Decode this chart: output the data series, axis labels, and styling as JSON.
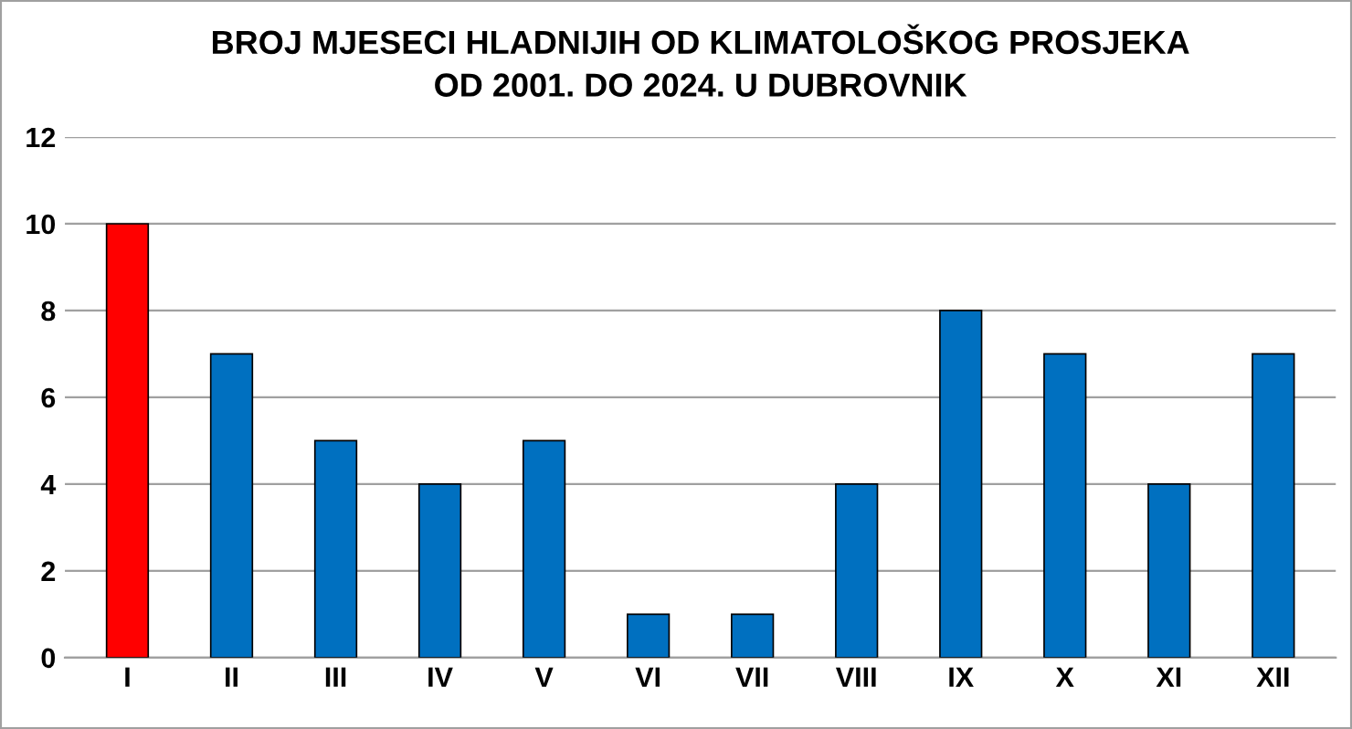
{
  "chart_data": {
    "type": "bar",
    "title": "BROJ MJESECI HLADNIJIH OD KLIMATOLOŠKOG PROSJEKA\nOD 2001. DO 2024. U DUBROVNIK",
    "categories": [
      "I",
      "II",
      "III",
      "IV",
      "V",
      "VI",
      "VII",
      "VIII",
      "IX",
      "X",
      "XI",
      "XII"
    ],
    "values": [
      10,
      7,
      5,
      4,
      5,
      1,
      1,
      4,
      8,
      7,
      4,
      7
    ],
    "colors": [
      "#ff0000",
      "#0070c0",
      "#0070c0",
      "#0070c0",
      "#0070c0",
      "#0070c0",
      "#0070c0",
      "#0070c0",
      "#0070c0",
      "#0070c0",
      "#0070c0",
      "#0070c0"
    ],
    "ylim": [
      0,
      12
    ],
    "yticks": [
      0,
      2,
      4,
      6,
      8,
      10,
      12
    ],
    "grid": "y",
    "legend": false
  }
}
